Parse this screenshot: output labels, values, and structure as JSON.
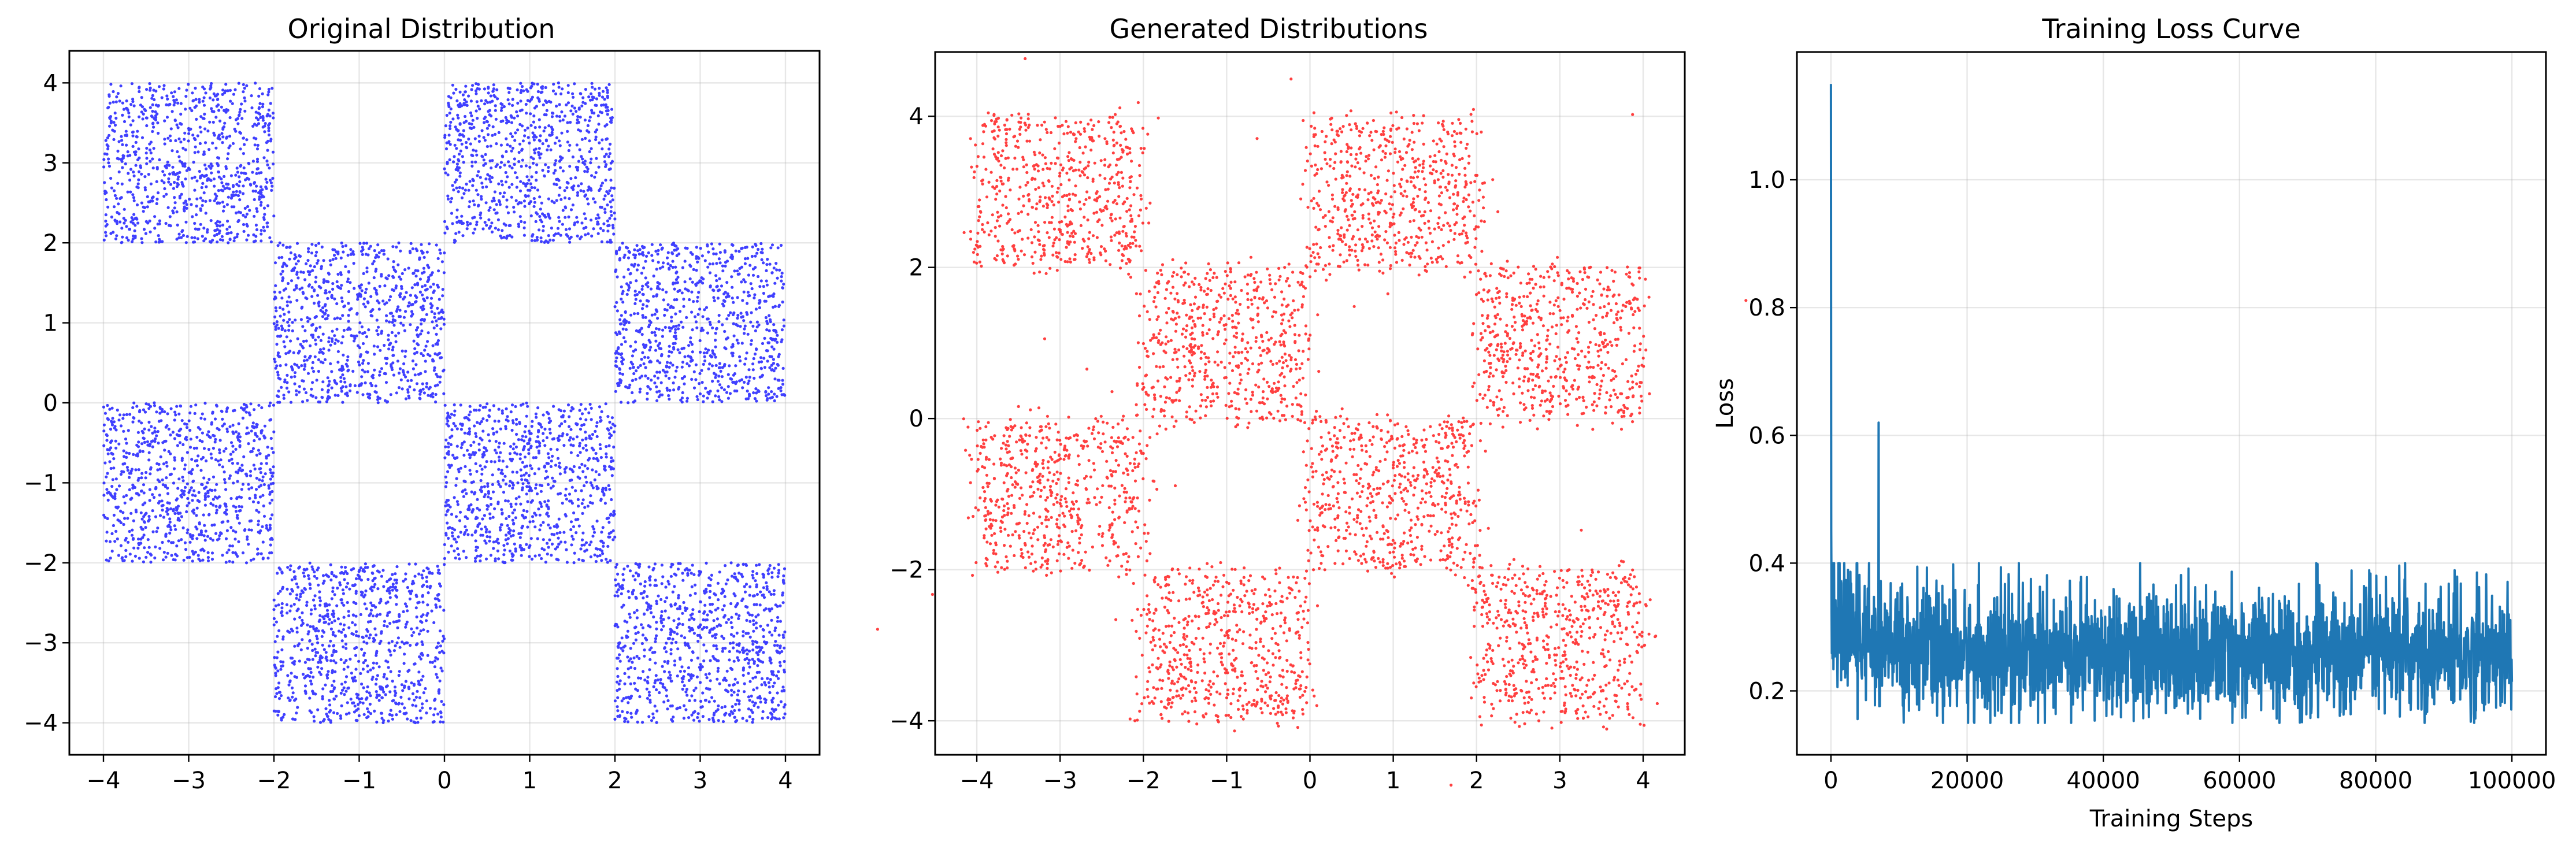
{
  "chart_data": [
    {
      "type": "scatter",
      "title": "Original Distribution",
      "xlabel": "",
      "ylabel": "",
      "xlim": [
        -4.4,
        4.4
      ],
      "ylim": [
        -4.4,
        4.4
      ],
      "xticks": [
        -4,
        -3,
        -2,
        -1,
        0,
        1,
        2,
        3,
        4
      ],
      "yticks": [
        -4,
        -3,
        -2,
        -1,
        0,
        1,
        2,
        3,
        4
      ],
      "xtick_labels": [
        "−4",
        "−3",
        "−2",
        "−1",
        "0",
        "1",
        "2",
        "3",
        "4"
      ],
      "ytick_labels": [
        "−4",
        "−3",
        "−2",
        "−1",
        "0",
        "1",
        "2",
        "3",
        "4"
      ],
      "grid": true,
      "color": "#0000ff",
      "distribution": "uniform checkerboard squares",
      "regions": [
        {
          "x": [
            -4,
            -2
          ],
          "y": [
            2,
            4
          ]
        },
        {
          "x": [
            0,
            2
          ],
          "y": [
            2,
            4
          ]
        },
        {
          "x": [
            -2,
            0
          ],
          "y": [
            0,
            2
          ]
        },
        {
          "x": [
            2,
            4
          ],
          "y": [
            0,
            2
          ]
        },
        {
          "x": [
            -4,
            -2
          ],
          "y": [
            -2,
            0
          ]
        },
        {
          "x": [
            0,
            2
          ],
          "y": [
            -2,
            0
          ]
        },
        {
          "x": [
            -2,
            0
          ],
          "y": [
            -4,
            -2
          ]
        },
        {
          "x": [
            2,
            4
          ],
          "y": [
            -4,
            -2
          ]
        }
      ]
    },
    {
      "type": "scatter",
      "title": "Generated Distributions",
      "xlabel": "",
      "ylabel": "",
      "xlim": [
        -4.5,
        4.5
      ],
      "ylim": [
        -4.45,
        4.85
      ],
      "xticks": [
        -4,
        -3,
        -2,
        -1,
        0,
        1,
        2,
        3,
        4
      ],
      "yticks": [
        -4,
        -2,
        0,
        2,
        4
      ],
      "xtick_labels": [
        "−4",
        "−3",
        "−2",
        "−1",
        "0",
        "1",
        "2",
        "3",
        "4"
      ],
      "ytick_labels": [
        "−4",
        "−2",
        "0",
        "2",
        "4"
      ],
      "grid": true,
      "color": "#ff0000",
      "distribution": "noisy checkerboard squares",
      "regions": [
        {
          "x": [
            -4,
            -2
          ],
          "y": [
            2,
            4
          ]
        },
        {
          "x": [
            0,
            2
          ],
          "y": [
            2,
            4
          ]
        },
        {
          "x": [
            -2,
            0
          ],
          "y": [
            0,
            2
          ]
        },
        {
          "x": [
            2,
            4
          ],
          "y": [
            0,
            2
          ]
        },
        {
          "x": [
            -4,
            -2
          ],
          "y": [
            -2,
            0
          ]
        },
        {
          "x": [
            0,
            2
          ],
          "y": [
            -2,
            0
          ]
        },
        {
          "x": [
            -2,
            0
          ],
          "y": [
            -4,
            -2
          ]
        },
        {
          "x": [
            2,
            4
          ],
          "y": [
            -4,
            -2
          ]
        }
      ]
    },
    {
      "type": "line",
      "title": "Training Loss Curve",
      "xlabel": "Training Steps",
      "ylabel": "Loss",
      "xlim": [
        -5000,
        105000
      ],
      "ylim": [
        0.1,
        1.2
      ],
      "xticks": [
        0,
        20000,
        40000,
        60000,
        80000,
        100000
      ],
      "yticks": [
        0.2,
        0.4,
        0.6,
        0.8,
        1.0
      ],
      "xtick_labels": [
        "0",
        "20000",
        "40000",
        "60000",
        "80000",
        "100000"
      ],
      "ytick_labels": [
        "0.2",
        "0.4",
        "0.6",
        "0.8",
        "1.0"
      ],
      "grid": true,
      "color": "#1f77b4",
      "x_range": [
        0,
        100000
      ],
      "initial_loss": 1.15,
      "spike": {
        "x": 7000,
        "y": 0.62
      },
      "band": {
        "min": 0.15,
        "max": 0.4,
        "typical_low": 0.18,
        "typical_high": 0.34
      }
    }
  ]
}
